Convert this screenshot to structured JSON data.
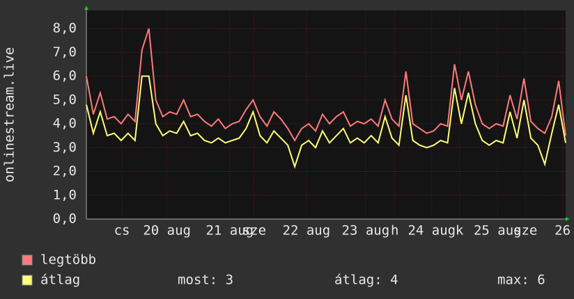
{
  "chart_data": {
    "type": "line",
    "y_label": "onlinestream.live",
    "ylim": [
      0,
      8
    ],
    "yticks": [
      {
        "value": 0,
        "label": "0,0"
      },
      {
        "value": 1,
        "label": "1,0"
      },
      {
        "value": 2,
        "label": "2,0"
      },
      {
        "value": 3,
        "label": "3,0"
      },
      {
        "value": 4,
        "label": "4,0"
      },
      {
        "value": 5,
        "label": "5,0"
      },
      {
        "value": 6,
        "label": "6,0"
      },
      {
        "value": 7,
        "label": "7,0"
      },
      {
        "value": 8,
        "label": "8,0"
      }
    ],
    "xlim": [
      0,
      172.5
    ],
    "xticks": [
      {
        "value": 12.8,
        "label": "cs"
      },
      {
        "value": 29,
        "label": "20 aug"
      },
      {
        "value": 51.6,
        "label": "21 aug"
      },
      {
        "value": 60.4,
        "label": "sze"
      },
      {
        "value": 79.2,
        "label": "22 aug"
      },
      {
        "value": 100.5,
        "label": "23 aug"
      },
      {
        "value": 111,
        "label": "h"
      },
      {
        "value": 124.3,
        "label": "24 aug"
      },
      {
        "value": 134.3,
        "label": "k"
      },
      {
        "value": 148,
        "label": "25 aug"
      },
      {
        "value": 158,
        "label": "sze"
      },
      {
        "value": 171.4,
        "label": "26"
      }
    ],
    "grid": true,
    "x": [
      0,
      2.5,
      5,
      7.5,
      10,
      12.5,
      15,
      17.5,
      20,
      22.5,
      25,
      27.5,
      30,
      32.5,
      35,
      37.5,
      40,
      42.5,
      45,
      47.5,
      50,
      52.5,
      55,
      57.5,
      60,
      62.5,
      65,
      67.5,
      70,
      72.5,
      75,
      77.5,
      80,
      82.5,
      85,
      87.5,
      90,
      92.5,
      95,
      97.5,
      100,
      102.5,
      105,
      107.5,
      110,
      112.5,
      115,
      117.5,
      120,
      122.5,
      125,
      127.5,
      130,
      132.5,
      135,
      137.5,
      140,
      142.5,
      145,
      147.5,
      150,
      152.5,
      155,
      157.5,
      160,
      162.5,
      165,
      167.5,
      170,
      172.5
    ],
    "series": [
      {
        "name": "legtöbb",
        "color": "#ff7a7a",
        "values": [
          6.0,
          4.4,
          5.3,
          4.2,
          4.3,
          4.0,
          4.4,
          4.1,
          7.1,
          8.0,
          5.0,
          4.3,
          4.5,
          4.4,
          5.0,
          4.3,
          4.4,
          4.1,
          3.9,
          4.2,
          3.8,
          4.0,
          4.1,
          4.6,
          5.0,
          4.3,
          3.9,
          4.5,
          4.2,
          3.8,
          3.3,
          3.8,
          4.0,
          3.7,
          4.4,
          4.0,
          4.3,
          4.5,
          3.9,
          4.1,
          4.0,
          4.2,
          3.9,
          5.0,
          4.2,
          3.9,
          6.2,
          4.0,
          3.8,
          3.6,
          3.7,
          4.0,
          3.9,
          6.5,
          5.0,
          6.2,
          4.8,
          4.0,
          3.8,
          4.0,
          3.9,
          5.2,
          4.2,
          5.9,
          4.1,
          3.8,
          3.6,
          4.3,
          5.8,
          3.5
        ]
      },
      {
        "name": "átlag",
        "color": "#ffff77",
        "values": [
          4.8,
          3.6,
          4.5,
          3.5,
          3.6,
          3.3,
          3.6,
          3.3,
          6.0,
          6.0,
          4.0,
          3.5,
          3.7,
          3.6,
          4.1,
          3.5,
          3.6,
          3.3,
          3.2,
          3.4,
          3.2,
          3.3,
          3.4,
          3.8,
          4.5,
          3.5,
          3.2,
          3.7,
          3.4,
          3.1,
          2.2,
          3.1,
          3.3,
          3.0,
          3.7,
          3.2,
          3.5,
          3.8,
          3.2,
          3.4,
          3.2,
          3.5,
          3.2,
          4.3,
          3.4,
          3.1,
          5.2,
          3.3,
          3.1,
          3.0,
          3.1,
          3.3,
          3.2,
          5.5,
          4.0,
          5.3,
          4.0,
          3.3,
          3.1,
          3.3,
          3.2,
          4.5,
          3.4,
          5.0,
          3.4,
          3.1,
          2.3,
          3.6,
          4.8,
          3.2
        ]
      }
    ],
    "stats": [
      "most: 3",
      "átlag: 4",
      "max: 6"
    ]
  }
}
